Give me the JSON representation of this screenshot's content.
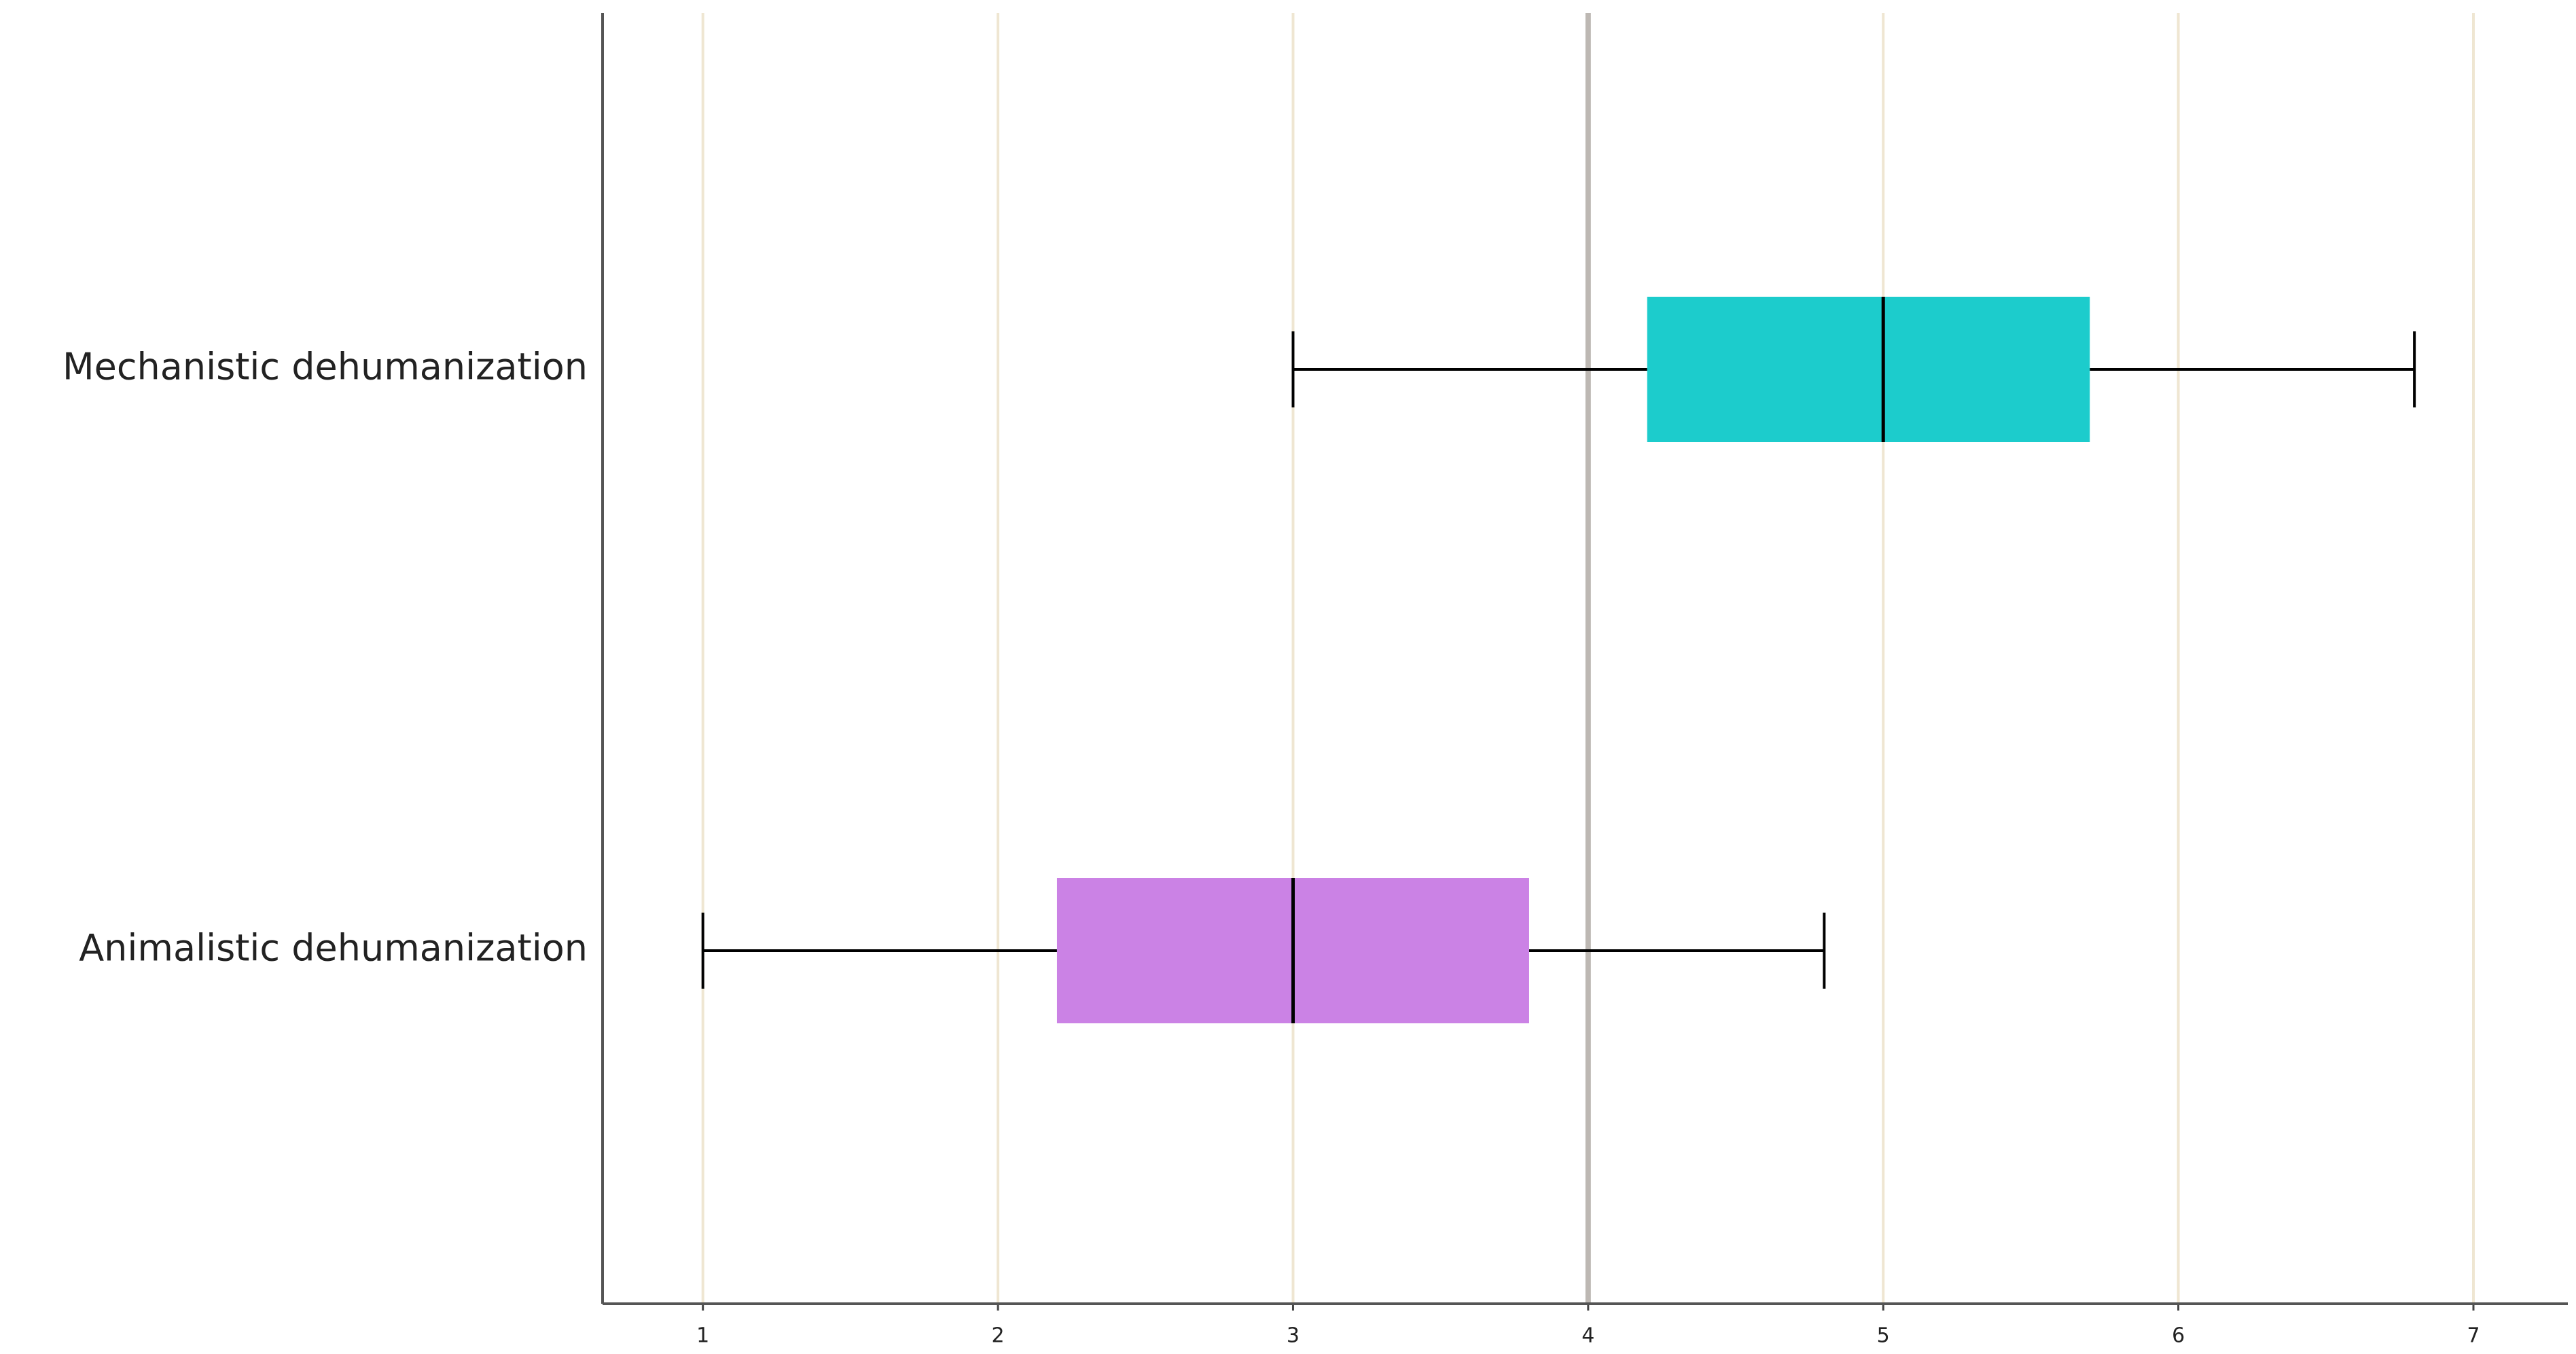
{
  "chart_data": {
    "type": "boxplot",
    "orientation": "horizontal",
    "boxes": [
      {
        "name": "Mechanistic dehumanization",
        "color": "#1ccccc",
        "min": 3,
        "q1": 4.2,
        "median": 5,
        "q3": 5.7,
        "max": 6.8
      },
      {
        "name": "Animalistic dehumanization",
        "color": "#cb82e5",
        "min": 1,
        "q1": 2.2,
        "median": 3,
        "q3": 3.8,
        "max": 4.8
      }
    ],
    "xlim": [
      0.66,
      7.32
    ],
    "xticks": [
      1,
      2,
      3,
      4,
      5,
      6,
      7
    ],
    "grid": true,
    "grid_color": "#efe6d2",
    "reference_line": 4,
    "reference_color": "#bdb8b3"
  }
}
